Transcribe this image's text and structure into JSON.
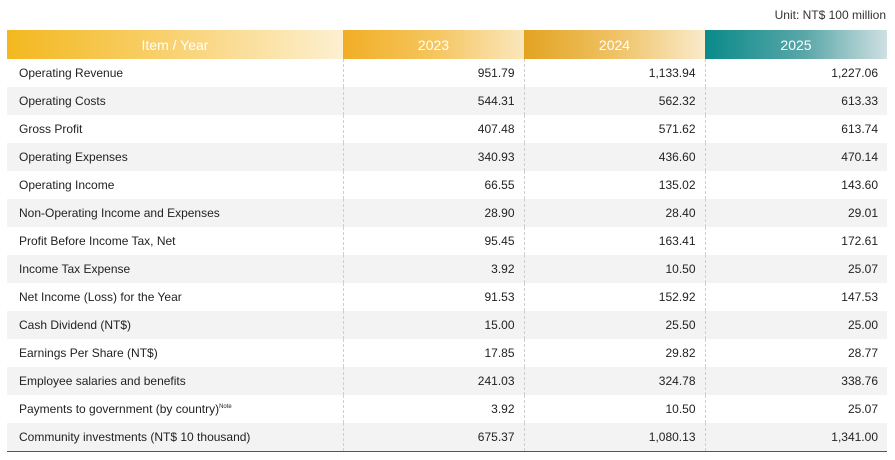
{
  "unit_label": "Unit: NT$ 100 million",
  "header": {
    "item": "Item / Year",
    "y1": "2023",
    "y2": "2024",
    "y3": "2025"
  },
  "rows": [
    {
      "label": "Operating Revenue",
      "v1": "951.79",
      "v2": "1,133.94",
      "v3": "1,227.06"
    },
    {
      "label": "Operating Costs",
      "v1": "544.31",
      "v2": "562.32",
      "v3": "613.33"
    },
    {
      "label": "Gross Profit",
      "v1": "407.48",
      "v2": "571.62",
      "v3": "613.74"
    },
    {
      "label": "Operating Expenses",
      "v1": "340.93",
      "v2": "436.60",
      "v3": "470.14"
    },
    {
      "label": "Operating Income",
      "v1": "66.55",
      "v2": "135.02",
      "v3": "143.60"
    },
    {
      "label": "Non-Operating Income and Expenses",
      "v1": "28.90",
      "v2": "28.40",
      "v3": "29.01"
    },
    {
      "label": "Profit Before Income Tax, Net",
      "v1": "95.45",
      "v2": "163.41",
      "v3": "172.61"
    },
    {
      "label": "Income Tax Expense",
      "v1": "3.92",
      "v2": "10.50",
      "v3": "25.07"
    },
    {
      "label": "Net Income (Loss) for the Year",
      "v1": "91.53",
      "v2": "152.92",
      "v3": "147.53"
    },
    {
      "label": "Cash Dividend (NT$)",
      "v1": "15.00",
      "v2": "25.50",
      "v3": "25.00"
    },
    {
      "label": "Earnings Per Share (NT$)",
      "v1": "17.85",
      "v2": "29.82",
      "v3": "28.77"
    },
    {
      "label": "Employee salaries and benefits",
      "v1": "241.03",
      "v2": "324.78",
      "v3": "338.76"
    },
    {
      "label": "Payments to government (by country)",
      "note": "Note",
      "v1": "3.92",
      "v2": "10.50",
      "v3": "25.07"
    },
    {
      "label": "Community investments (NT$ 10 thousand)",
      "v1": "675.37",
      "v2": "1,080.13",
      "v3": "1,341.00"
    }
  ]
}
